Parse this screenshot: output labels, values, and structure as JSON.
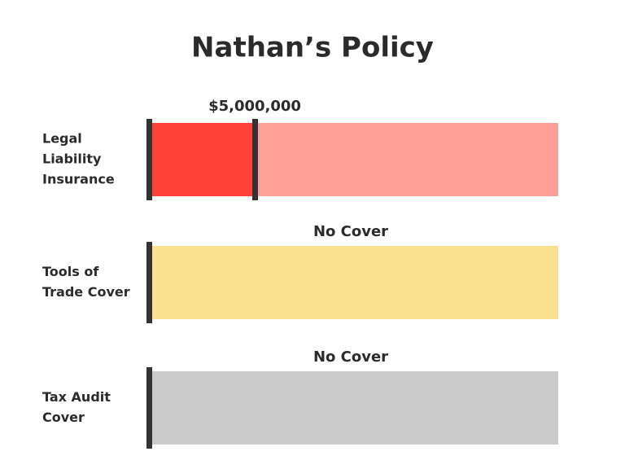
{
  "title": "Nathan’s Policy",
  "rows": [
    {
      "label": [
        "Legal",
        "Liability",
        "Insurance"
      ],
      "value_label": "$5,000,000"
    },
    {
      "label": [
        "Tools of",
        "Trade Cover"
      ],
      "value_label": "No Cover"
    },
    {
      "label": [
        "Tax Audit",
        "Cover"
      ],
      "value_label": "No Cover"
    }
  ]
}
